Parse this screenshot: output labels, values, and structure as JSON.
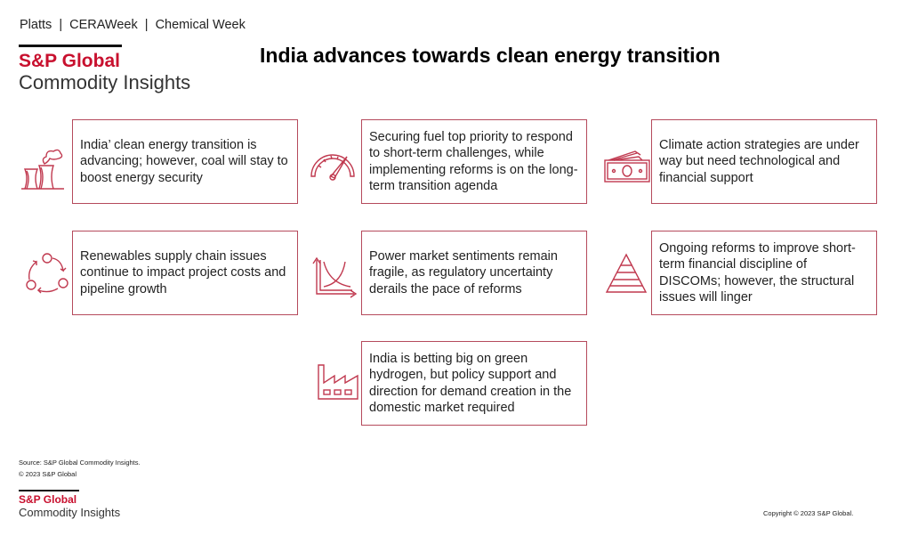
{
  "header": {
    "brands": "Platts  |  CERAWeek  |  Chemical Week",
    "logo_line1": "S&P Global",
    "logo_line2": "Commodity Insights",
    "title": "India advances towards clean energy transition"
  },
  "colors": {
    "accent": "#c8102e",
    "box_border": "#b54a5c",
    "icon": "#c0394f"
  },
  "cards": [
    {
      "icon": "cooling-tower-icon",
      "text": "India’ clean energy transition is advancing; however, coal will stay to boost energy security"
    },
    {
      "icon": "speedometer-icon",
      "text": "Securing fuel top priority to respond to short-term challenges, while implementing reforms is on the long-term transition agenda"
    },
    {
      "icon": "money-icon",
      "text": "Climate action strategies are under way but need technological and financial support"
    },
    {
      "icon": "cycle-icon",
      "text": "Renewables supply chain issues continue to impact project costs and pipeline growth"
    },
    {
      "icon": "crossing-curves-chart-icon",
      "text": "Power market sentiments remain fragile, as regulatory uncertainty derails the pace of reforms"
    },
    {
      "icon": "pyramid-icon",
      "text": "Ongoing reforms to improve short-term financial discipline of DISCOMs; however, the structural issues will linger"
    },
    {
      "icon": "factory-icon",
      "text": "India is betting big on green hydrogen, but policy support and direction for demand creation in the domestic market required"
    }
  ],
  "footer": {
    "source": "Source: S&P Global Commodity Insights.",
    "copyright_small": "© 2023 S&P Global",
    "logo_line1": "S&P Global",
    "logo_line2": "Commodity Insights",
    "copyright": "Copyright © 2023 S&P Global."
  }
}
